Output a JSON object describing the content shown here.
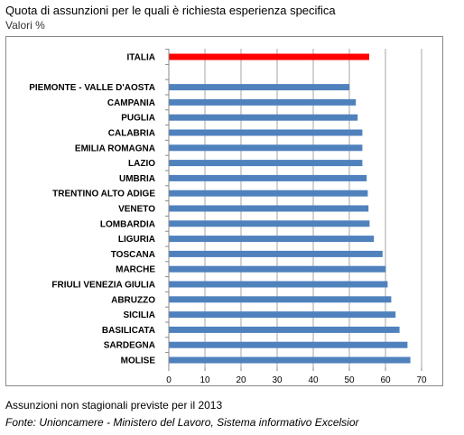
{
  "header": {
    "title": "Quota di assunzioni per le quali è richiesta esperienza specifica",
    "subtitle": "Valori %"
  },
  "footer": {
    "note": "Assunzioni non stagionali previste per il 2013",
    "source": "Fonte: Unioncamere - Ministero del Lavoro, Sistema informativo Excelsior"
  },
  "chart_data": {
    "type": "bar",
    "orientation": "horizontal",
    "xlim": [
      0,
      70
    ],
    "xticks": [
      0,
      10,
      20,
      30,
      40,
      50,
      60,
      70
    ],
    "grid": "vertical",
    "categories": [
      "ITALIA",
      "",
      "PIEMONTE - VALLE D'AOSTA",
      "CAMPANIA",
      "PUGLIA",
      "CALABRIA",
      "EMILIA ROMAGNA",
      "LAZIO",
      "UMBRIA",
      "TRENTINO ALTO ADIGE",
      "VENETO",
      "LOMBARDIA",
      "LIGURIA",
      "TOSCANA",
      "MARCHE",
      "FRIULI VENEZIA GIULIA",
      "ABRUZZO",
      "SICILIA",
      "BASILICATA",
      "SARDEGNA",
      "MOLISE"
    ],
    "values": [
      55.5,
      null,
      50.0,
      51.8,
      52.3,
      53.6,
      53.6,
      53.6,
      54.8,
      55.1,
      55.3,
      55.6,
      56.8,
      59.2,
      60.1,
      60.6,
      61.6,
      62.8,
      63.9,
      66.1,
      66.9
    ],
    "colors": {
      "highlight": "#ff0000",
      "default": "#4f81bd"
    },
    "highlight_category": "ITALIA"
  }
}
